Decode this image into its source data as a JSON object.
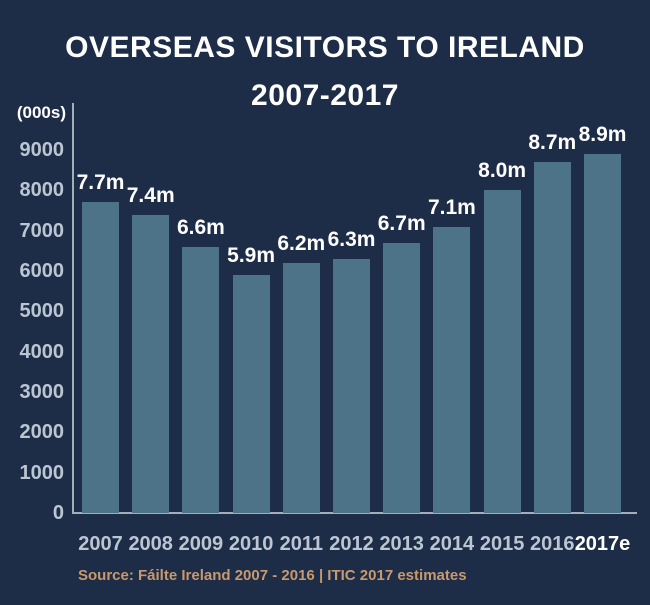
{
  "title": {
    "line1": "OVERSEAS VISITORS TO IRELAND",
    "line2": "2007-2017"
  },
  "source": "Source: Fáilte Ireland 2007 - 2016 | ITIC 2017 estimates",
  "colors": {
    "background": "#1d2c47",
    "bar": "#4d7389",
    "title_text": "#ffffff",
    "tick_text": "#bcc6d2",
    "axis_line": "#a4aeba",
    "source_text": "#c8996e"
  },
  "chart_data": {
    "type": "bar",
    "title": "OVERSEAS VISITORS TO IRELAND 2007-2017",
    "ylabel": "(000s)",
    "categories": [
      "2007",
      "2008",
      "2009",
      "2010",
      "2011",
      "2012",
      "2013",
      "2014",
      "2015",
      "2016",
      "2017e"
    ],
    "values": [
      7700,
      7400,
      6600,
      5900,
      6200,
      6300,
      6700,
      7100,
      8000,
      8700,
      8900
    ],
    "bar_labels": [
      "7.7m",
      "7.4m",
      "6.6m",
      "5.9m",
      "6.2m",
      "6.3m",
      "6.7m",
      "7.1m",
      "8.0m",
      "8.7m",
      "8.9m"
    ],
    "yticks": [
      0,
      1000,
      2000,
      3000,
      4000,
      5000,
      6000,
      7000,
      8000,
      9000
    ],
    "ylim": [
      0,
      9000
    ],
    "grid": false,
    "legend": null,
    "emphasize_last_category": true
  }
}
